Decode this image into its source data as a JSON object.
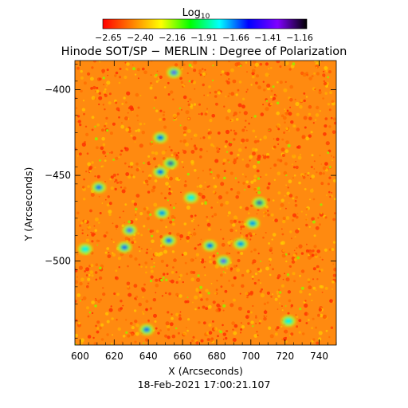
{
  "colorbar": {
    "label_main": "Log",
    "label_sub": "10",
    "tick_labels": [
      "−2.65",
      "−2.40",
      "−2.16",
      "−1.91",
      "−1.66",
      "−1.41",
      "−1.16"
    ],
    "range": [
      -2.65,
      -1.16
    ],
    "colormap": [
      "#ff0000",
      "#ff7f00",
      "#ffff00",
      "#00ff00",
      "#00ffff",
      "#0000ff",
      "#8000ff",
      "#000000"
    ]
  },
  "chart_data": {
    "type": "heatmap",
    "title": "Hinode SOT/SP − MERLIN : Degree of Polarization",
    "xlabel": "X (Arcseconds)",
    "ylabel": "Y (Arcseconds)",
    "xlim": [
      597,
      750
    ],
    "ylim": [
      -549,
      -383
    ],
    "xticks": [
      600,
      620,
      640,
      660,
      680,
      700,
      720,
      740
    ],
    "yticks": [
      -400,
      -450,
      -500
    ],
    "xtick_labels": [
      "600",
      "620",
      "640",
      "660",
      "680",
      "700",
      "720",
      "740"
    ],
    "ytick_labels": [
      "−400",
      "−450",
      "−500"
    ],
    "background_log_value": -2.5,
    "bright_patches": [
      {
        "x": 655,
        "y": -390,
        "value": -1.4
      },
      {
        "x": 647,
        "y": -428,
        "value": -1.6
      },
      {
        "x": 653,
        "y": -443,
        "value": -1.3
      },
      {
        "x": 647,
        "y": -448,
        "value": -1.6
      },
      {
        "x": 611,
        "y": -457,
        "value": -1.5
      },
      {
        "x": 629,
        "y": -482,
        "value": -1.4
      },
      {
        "x": 626,
        "y": -492,
        "value": -1.5
      },
      {
        "x": 652,
        "y": -488,
        "value": -1.5
      },
      {
        "x": 648,
        "y": -472,
        "value": -1.7
      },
      {
        "x": 676,
        "y": -491,
        "value": -1.6
      },
      {
        "x": 684,
        "y": -500,
        "value": -1.4
      },
      {
        "x": 705,
        "y": -466,
        "value": -1.3
      },
      {
        "x": 701,
        "y": -478,
        "value": -1.7
      },
      {
        "x": 694,
        "y": -490,
        "value": -1.7
      },
      {
        "x": 603,
        "y": -493,
        "value": -1.8
      },
      {
        "x": 639,
        "y": -540,
        "value": -1.5
      },
      {
        "x": 665,
        "y": -463,
        "value": -1.8
      },
      {
        "x": 722,
        "y": -535,
        "value": -1.8
      }
    ]
  },
  "footer": {
    "timestamp": "18-Feb-2021 17:00:21.107"
  }
}
